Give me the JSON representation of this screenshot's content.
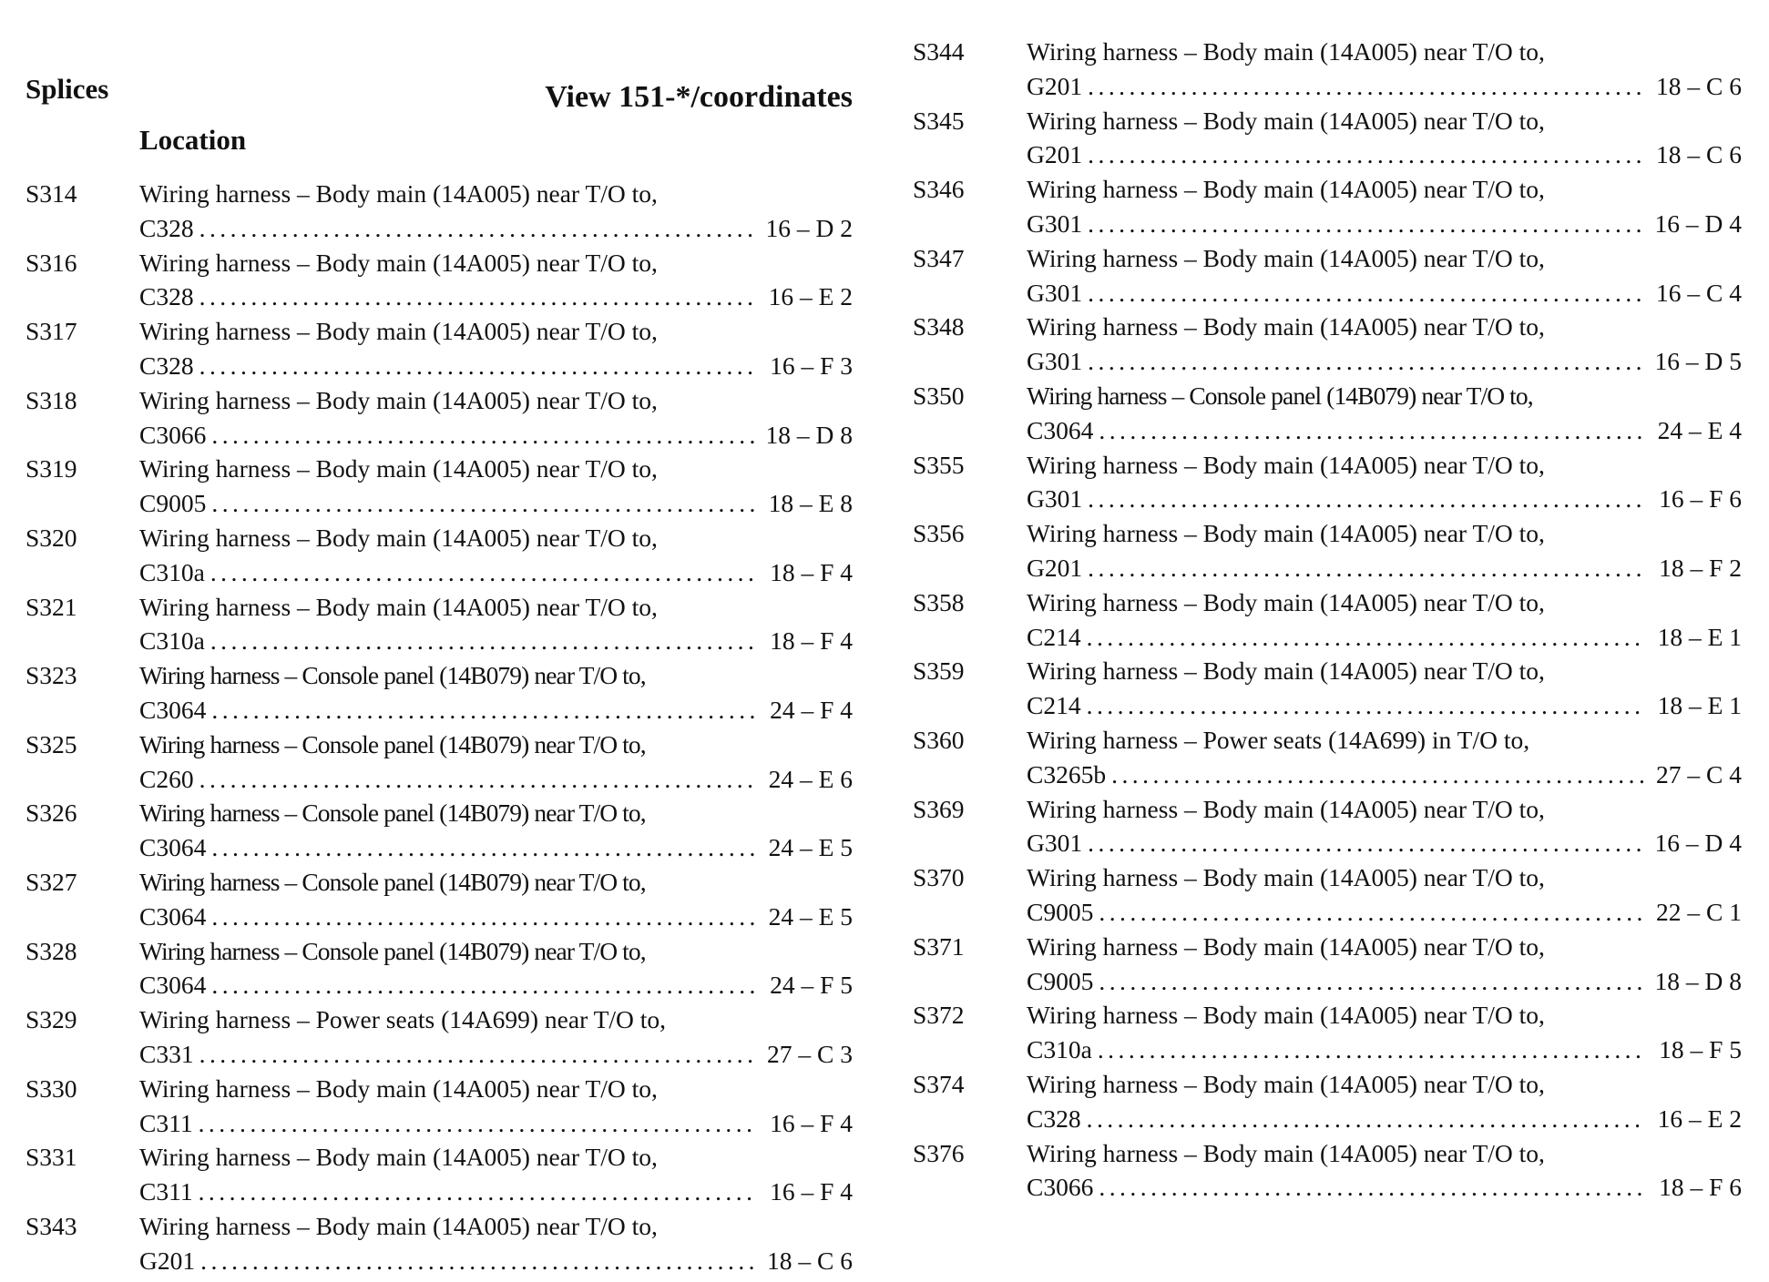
{
  "header": {
    "title": "Splices",
    "view_label": "View 151-*/coordinates",
    "location_label": "Location"
  },
  "left_column": [
    {
      "id": "S314",
      "desc": "Wiring harness – Body main (14A005) near T/O to,",
      "target": "C328",
      "coord": "16 – D 2"
    },
    {
      "id": "S316",
      "desc": "Wiring harness – Body main (14A005) near T/O to,",
      "target": "C328",
      "coord": "16 – E 2"
    },
    {
      "id": "S317",
      "desc": "Wiring harness – Body main (14A005) near T/O to,",
      "target": "C328",
      "coord": "16 – F 3"
    },
    {
      "id": "S318",
      "desc": "Wiring harness – Body main (14A005) near T/O to,",
      "target": "C3066",
      "coord": "18 – D 8"
    },
    {
      "id": "S319",
      "desc": "Wiring harness – Body main (14A005) near T/O to,",
      "target": "C9005",
      "coord": "18 – E 8"
    },
    {
      "id": "S320",
      "desc": "Wiring harness – Body main (14A005) near T/O to,",
      "target": "C310a",
      "coord": "18 – F 4"
    },
    {
      "id": "S321",
      "desc": "Wiring harness – Body main (14A005) near T/O to,",
      "target": "C310a",
      "coord": "18 – F 4"
    },
    {
      "id": "S323",
      "desc": "Wiring harness – Console panel (14B079) near T/O to,",
      "target": "C3064",
      "coord": "24 – F 4"
    },
    {
      "id": "S325",
      "desc": "Wiring harness – Console panel (14B079) near T/O to,",
      "target": "C260",
      "coord": "24 – E 6"
    },
    {
      "id": "S326",
      "desc": "Wiring harness – Console panel (14B079) near T/O to,",
      "target": "C3064",
      "coord": "24 – E 5"
    },
    {
      "id": "S327",
      "desc": "Wiring harness – Console panel (14B079) near T/O to,",
      "target": "C3064",
      "coord": "24 – E 5"
    },
    {
      "id": "S328",
      "desc": "Wiring harness – Console panel (14B079) near T/O to,",
      "target": "C3064",
      "coord": "24 – F 5"
    },
    {
      "id": "S329",
      "desc": "Wiring harness – Power seats (14A699) near T/O to,",
      "target": "C331",
      "coord": "27 – C 3"
    },
    {
      "id": "S330",
      "desc": "Wiring harness – Body main (14A005) near T/O to,",
      "target": "C311",
      "coord": "16 – F 4"
    },
    {
      "id": "S331",
      "desc": "Wiring harness – Body main (14A005) near T/O to,",
      "target": "C311",
      "coord": "16 – F 4"
    },
    {
      "id": "S343",
      "desc": "Wiring harness – Body main (14A005) near T/O to,",
      "target": "G201",
      "coord": "18 – C 6"
    }
  ],
  "right_column": [
    {
      "id": "S344",
      "desc": "Wiring harness – Body main (14A005) near T/O to,",
      "target": "G201",
      "coord": "18 – C 6"
    },
    {
      "id": "S345",
      "desc": "Wiring harness – Body main (14A005) near T/O to,",
      "target": "G201",
      "coord": "18 – C 6"
    },
    {
      "id": "S346",
      "desc": "Wiring harness – Body main (14A005) near T/O to,",
      "target": "G301",
      "coord": "16 – D 4"
    },
    {
      "id": "S347",
      "desc": "Wiring harness – Body main (14A005) near T/O to,",
      "target": "G301",
      "coord": "16 – C 4"
    },
    {
      "id": "S348",
      "desc": "Wiring harness – Body main (14A005) near T/O to,",
      "target": "G301",
      "coord": "16 – D 5"
    },
    {
      "id": "S350",
      "desc": "Wiring harness – Console panel (14B079) near T/O to,",
      "target": "C3064",
      "coord": "24 – E 4"
    },
    {
      "id": "S355",
      "desc": "Wiring harness – Body main (14A005) near T/O to,",
      "target": "G301",
      "coord": "16 – F 6"
    },
    {
      "id": "S356",
      "desc": "Wiring harness – Body main (14A005) near T/O to,",
      "target": "G201",
      "coord": "18 – F 2"
    },
    {
      "id": "S358",
      "desc": "Wiring harness – Body main (14A005) near T/O to,",
      "target": "C214",
      "coord": "18 – E 1"
    },
    {
      "id": "S359",
      "desc": "Wiring harness – Body main (14A005) near T/O to,",
      "target": "C214",
      "coord": "18 – E 1"
    },
    {
      "id": "S360",
      "desc": "Wiring harness – Power seats (14A699) in T/O to,",
      "target": "C3265b",
      "coord": "27 – C 4"
    },
    {
      "id": "S369",
      "desc": "Wiring harness – Body main (14A005) near T/O to,",
      "target": "G301",
      "coord": "16 – D 4"
    },
    {
      "id": "S370",
      "desc": "Wiring harness – Body main (14A005) near T/O to,",
      "target": "C9005",
      "coord": "22 – C 1"
    },
    {
      "id": "S371",
      "desc": "Wiring harness – Body main (14A005) near T/O to,",
      "target": "C9005",
      "coord": "18 – D 8"
    },
    {
      "id": "S372",
      "desc": "Wiring harness – Body main (14A005) near T/O to,",
      "target": "C310a",
      "coord": "18 – F 5"
    },
    {
      "id": "S374",
      "desc": "Wiring harness – Body main (14A005) near T/O to,",
      "target": "C328",
      "coord": "16 – E 2"
    },
    {
      "id": "S376",
      "desc": "Wiring harness – Body main (14A005) near T/O to,",
      "target": "C3066",
      "coord": "18 – F 6"
    }
  ]
}
